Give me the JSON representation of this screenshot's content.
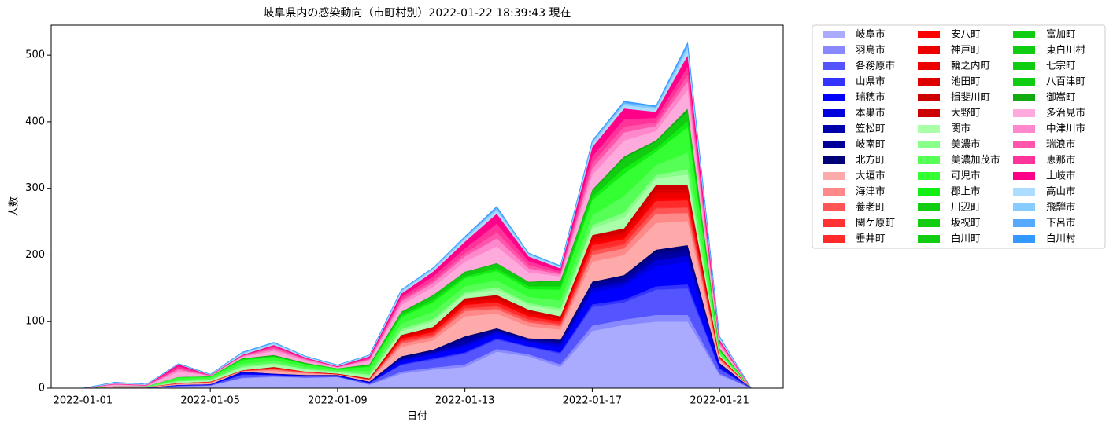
{
  "chart_data": {
    "type": "stacked_area",
    "title": "岐阜県内の感染動向（市町村別）2022-01-22 18:39:43 現在",
    "x_label": "日付",
    "y_label": "人数",
    "x": [
      "2022-01-01",
      "2022-01-02",
      "2022-01-03",
      "2022-01-04",
      "2022-01-05",
      "2022-01-06",
      "2022-01-07",
      "2022-01-08",
      "2022-01-09",
      "2022-01-10",
      "2022-01-11",
      "2022-01-12",
      "2022-01-13",
      "2022-01-14",
      "2022-01-15",
      "2022-01-16",
      "2022-01-17",
      "2022-01-18",
      "2022-01-19",
      "2022-01-20",
      "2022-01-21",
      "2022-01-22"
    ],
    "xlim": [
      "2021-12-31",
      "2022-01-23"
    ],
    "xticks": [
      "2022-01-01",
      "2022-01-05",
      "2022-01-09",
      "2022-01-13",
      "2022-01-17",
      "2022-01-21"
    ],
    "ylim": [
      0,
      545
    ],
    "yticks": [
      0,
      100,
      200,
      300,
      400,
      500
    ],
    "legend": "outside-right",
    "series": [
      {
        "name": "岐阜市",
        "color": "#aaaaff",
        "values": [
          0,
          1,
          0,
          3,
          4,
          15,
          17,
          16,
          17,
          5,
          22,
          28,
          32,
          55,
          48,
          32,
          86,
          95,
          100,
          100,
          20,
          0
        ]
      },
      {
        "name": "羽島市",
        "color": "#8888ff",
        "values": [
          0,
          0,
          0,
          0,
          0,
          1,
          1,
          0,
          0,
          1,
          3,
          3,
          4,
          4,
          3,
          4,
          8,
          8,
          10,
          10,
          2,
          0
        ]
      },
      {
        "name": "各務原市",
        "color": "#5555ff",
        "values": [
          0,
          0,
          1,
          1,
          1,
          4,
          2,
          2,
          1,
          2,
          10,
          12,
          16,
          14,
          11,
          16,
          28,
          26,
          38,
          40,
          7,
          0
        ]
      },
      {
        "name": "山県市",
        "color": "#3333ff",
        "values": [
          0,
          0,
          0,
          0,
          0,
          1,
          0,
          0,
          0,
          0,
          1,
          2,
          2,
          2,
          1,
          2,
          4,
          4,
          5,
          6,
          1,
          0
        ]
      },
      {
        "name": "瑞穂市",
        "color": "#0000ff",
        "values": [
          0,
          0,
          0,
          1,
          1,
          2,
          1,
          1,
          1,
          1,
          5,
          6,
          8,
          7,
          6,
          8,
          18,
          20,
          30,
          34,
          4,
          0
        ]
      },
      {
        "name": "本巣市",
        "color": "#0000dd",
        "values": [
          0,
          0,
          0,
          0,
          0,
          1,
          1,
          0,
          0,
          0,
          2,
          2,
          4,
          3,
          2,
          4,
          6,
          6,
          9,
          9,
          1,
          0
        ]
      },
      {
        "name": "笠松町",
        "color": "#0000aa",
        "values": [
          0,
          0,
          0,
          0,
          0,
          1,
          0,
          1,
          1,
          1,
          2,
          2,
          6,
          2,
          2,
          3,
          4,
          4,
          6,
          6,
          1,
          0
        ]
      },
      {
        "name": "岐南町",
        "color": "#000099",
        "values": [
          0,
          0,
          0,
          0,
          0,
          0,
          0,
          0,
          0,
          0,
          1,
          1,
          3,
          1,
          1,
          2,
          3,
          4,
          5,
          5,
          1,
          0
        ]
      },
      {
        "name": "北方町",
        "color": "#000077",
        "values": [
          0,
          0,
          0,
          0,
          0,
          0,
          0,
          0,
          0,
          0,
          2,
          2,
          3,
          2,
          1,
          2,
          3,
          3,
          5,
          5,
          1,
          0
        ]
      },
      {
        "name": "大垣市",
        "color": "#ffaaaa",
        "values": [
          0,
          1,
          1,
          1,
          2,
          1,
          4,
          2,
          1,
          2,
          14,
          14,
          30,
          22,
          18,
          15,
          30,
          30,
          40,
          36,
          4,
          0
        ]
      },
      {
        "name": "海津市",
        "color": "#ff8888",
        "values": [
          0,
          0,
          0,
          1,
          1,
          0,
          2,
          1,
          0,
          1,
          5,
          5,
          8,
          7,
          6,
          5,
          10,
          10,
          14,
          12,
          2,
          0
        ]
      },
      {
        "name": "養老町",
        "color": "#ff5555",
        "values": [
          0,
          0,
          0,
          0,
          0,
          0,
          1,
          1,
          0,
          0,
          3,
          3,
          4,
          4,
          4,
          3,
          6,
          6,
          8,
          8,
          1,
          0
        ]
      },
      {
        "name": "関ケ原町",
        "color": "#ff3333",
        "values": [
          0,
          0,
          0,
          0,
          0,
          0,
          0,
          0,
          0,
          0,
          1,
          1,
          1,
          1,
          1,
          1,
          2,
          2,
          2,
          2,
          0,
          0
        ]
      },
      {
        "name": "垂井町",
        "color": "#ff2a2a",
        "values": [
          0,
          0,
          0,
          1,
          1,
          1,
          1,
          1,
          0,
          1,
          3,
          3,
          4,
          5,
          4,
          3,
          7,
          6,
          9,
          9,
          1,
          0
        ]
      },
      {
        "name": "安八町",
        "color": "#ff0000",
        "values": [
          0,
          0,
          0,
          0,
          0,
          0,
          1,
          0,
          0,
          0,
          1,
          2,
          2,
          2,
          2,
          2,
          3,
          3,
          5,
          4,
          1,
          0
        ]
      },
      {
        "name": "神戸町",
        "color": "#ee0000",
        "values": [
          0,
          0,
          0,
          0,
          0,
          0,
          0,
          0,
          0,
          0,
          1,
          1,
          2,
          2,
          2,
          1,
          3,
          3,
          4,
          4,
          0,
          0
        ]
      },
      {
        "name": "輪之内町",
        "color": "#ee0000",
        "values": [
          0,
          0,
          0,
          0,
          0,
          0,
          0,
          0,
          0,
          0,
          1,
          1,
          1,
          1,
          1,
          1,
          2,
          2,
          3,
          3,
          0,
          0
        ]
      },
      {
        "name": "池田町",
        "color": "#dd0000",
        "values": [
          0,
          0,
          0,
          0,
          0,
          0,
          0,
          0,
          1,
          0,
          1,
          2,
          2,
          2,
          2,
          2,
          3,
          3,
          5,
          5,
          1,
          0
        ]
      },
      {
        "name": "揖斐川町",
        "color": "#cc0000",
        "values": [
          0,
          0,
          0,
          0,
          0,
          0,
          1,
          0,
          0,
          1,
          1,
          1,
          2,
          2,
          2,
          1,
          2,
          3,
          4,
          4,
          0,
          0
        ]
      },
      {
        "name": "大野町",
        "color": "#cc0000",
        "values": [
          0,
          0,
          0,
          0,
          0,
          0,
          0,
          0,
          0,
          0,
          1,
          1,
          1,
          2,
          1,
          1,
          2,
          2,
          3,
          3,
          0,
          0
        ]
      },
      {
        "name": "関市",
        "color": "#aaffaa",
        "values": [
          0,
          0,
          0,
          2,
          2,
          4,
          4,
          3,
          2,
          4,
          6,
          8,
          6,
          8,
          7,
          8,
          10,
          16,
          10,
          16,
          2,
          0
        ]
      },
      {
        "name": "美濃市",
        "color": "#88ff88",
        "values": [
          0,
          0,
          0,
          1,
          1,
          2,
          2,
          1,
          1,
          2,
          3,
          4,
          3,
          4,
          3,
          4,
          5,
          8,
          5,
          8,
          1,
          0
        ]
      },
      {
        "name": "美濃加茂市",
        "color": "#55ff55",
        "values": [
          0,
          1,
          1,
          2,
          2,
          4,
          4,
          3,
          2,
          5,
          8,
          11,
          9,
          10,
          9,
          12,
          15,
          24,
          15,
          25,
          3,
          0
        ]
      },
      {
        "name": "可児市",
        "color": "#33ff33",
        "values": [
          0,
          0,
          0,
          3,
          2,
          5,
          5,
          4,
          2,
          6,
          10,
          14,
          12,
          14,
          12,
          16,
          22,
          34,
          20,
          38,
          3,
          0
        ]
      },
      {
        "name": "郡上市",
        "color": "#11ee11",
        "values": [
          0,
          0,
          0,
          1,
          1,
          2,
          1,
          1,
          1,
          2,
          3,
          4,
          3,
          4,
          4,
          5,
          5,
          8,
          5,
          9,
          1,
          0
        ]
      },
      {
        "name": "川辺町",
        "color": "#11cc11",
        "values": [
          0,
          0,
          0,
          0,
          0,
          0,
          0,
          0,
          0,
          0,
          1,
          1,
          1,
          1,
          1,
          1,
          2,
          3,
          2,
          3,
          0,
          0
        ]
      },
      {
        "name": "坂祝町",
        "color": "#11cc11",
        "values": [
          0,
          0,
          0,
          0,
          0,
          0,
          1,
          0,
          0,
          0,
          1,
          1,
          1,
          1,
          1,
          1,
          1,
          2,
          1,
          2,
          0,
          0
        ]
      },
      {
        "name": "白川町",
        "color": "#11cc11",
        "values": [
          0,
          0,
          0,
          0,
          0,
          0,
          0,
          0,
          0,
          0,
          0,
          1,
          1,
          1,
          1,
          1,
          1,
          2,
          1,
          2,
          0,
          0
        ]
      },
      {
        "name": "富加町",
        "color": "#11cc11",
        "values": [
          0,
          0,
          0,
          0,
          0,
          0,
          0,
          0,
          0,
          0,
          1,
          1,
          1,
          1,
          1,
          1,
          1,
          2,
          2,
          2,
          0,
          0
        ]
      },
      {
        "name": "東白川村",
        "color": "#11cc11",
        "values": [
          0,
          0,
          0,
          0,
          0,
          0,
          0,
          0,
          0,
          0,
          0,
          0,
          0,
          1,
          0,
          1,
          1,
          1,
          1,
          1,
          0,
          0
        ]
      },
      {
        "name": "七宗町",
        "color": "#11cc11",
        "values": [
          0,
          0,
          0,
          0,
          0,
          0,
          0,
          0,
          0,
          0,
          0,
          1,
          1,
          1,
          1,
          1,
          1,
          2,
          1,
          2,
          0,
          0
        ]
      },
      {
        "name": "八百津町",
        "color": "#11cc11",
        "values": [
          0,
          0,
          0,
          0,
          0,
          0,
          0,
          0,
          0,
          1,
          1,
          1,
          1,
          1,
          1,
          2,
          2,
          3,
          2,
          3,
          1,
          0
        ]
      },
      {
        "name": "御嵩町",
        "color": "#11aa11",
        "values": [
          0,
          0,
          0,
          0,
          0,
          1,
          1,
          1,
          0,
          1,
          1,
          1,
          1,
          1,
          1,
          1,
          2,
          3,
          2,
          4,
          1,
          0
        ]
      },
      {
        "name": "多治見市",
        "color": "#ffaadd",
        "values": [
          0,
          2,
          1,
          8,
          1,
          2,
          6,
          3,
          1,
          5,
          10,
          12,
          15,
          25,
          14,
          6,
          22,
          24,
          14,
          28,
          5,
          0
        ]
      },
      {
        "name": "中津川市",
        "color": "#ff88cc",
        "values": [
          0,
          1,
          0,
          3,
          0,
          1,
          3,
          2,
          1,
          2,
          5,
          6,
          8,
          12,
          6,
          3,
          10,
          12,
          8,
          13,
          2,
          0
        ]
      },
      {
        "name": "瑞浪市",
        "color": "#ff55aa",
        "values": [
          0,
          0,
          0,
          2,
          0,
          1,
          2,
          1,
          0,
          1,
          3,
          4,
          5,
          9,
          5,
          2,
          8,
          9,
          5,
          10,
          2,
          0
        ]
      },
      {
        "name": "恵那市",
        "color": "#ff3399",
        "values": [
          0,
          1,
          1,
          3,
          1,
          0,
          2,
          1,
          0,
          2,
          4,
          6,
          7,
          13,
          6,
          3,
          10,
          11,
          7,
          12,
          2,
          0
        ]
      },
      {
        "name": "土岐市",
        "color": "#ff0088",
        "values": [
          0,
          0,
          0,
          3,
          0,
          1,
          2,
          1,
          1,
          2,
          5,
          7,
          10,
          15,
          7,
          4,
          14,
          16,
          9,
          17,
          2,
          0
        ]
      },
      {
        "name": "高山市",
        "color": "#aaddff",
        "values": [
          0,
          1,
          1,
          0,
          0,
          2,
          2,
          1,
          1,
          1,
          3,
          3,
          4,
          5,
          2,
          2,
          5,
          5,
          4,
          9,
          2,
          0
        ]
      },
      {
        "name": "飛騨市",
        "color": "#88ccff",
        "values": [
          0,
          1,
          0,
          1,
          1,
          1,
          1,
          1,
          1,
          1,
          2,
          2,
          2,
          3,
          2,
          1,
          3,
          3,
          3,
          5,
          2,
          0
        ]
      },
      {
        "name": "下呂市",
        "color": "#55aaff",
        "values": [
          0,
          0,
          0,
          0,
          0,
          1,
          1,
          0,
          0,
          0,
          1,
          1,
          1,
          2,
          1,
          1,
          1,
          2,
          1,
          3,
          1,
          0
        ]
      },
      {
        "name": "白川村",
        "color": "#3399ff",
        "values": [
          0,
          0,
          0,
          0,
          0,
          0,
          0,
          0,
          0,
          0,
          0,
          0,
          1,
          1,
          0,
          0,
          1,
          1,
          1,
          2,
          0,
          0
        ]
      }
    ]
  }
}
